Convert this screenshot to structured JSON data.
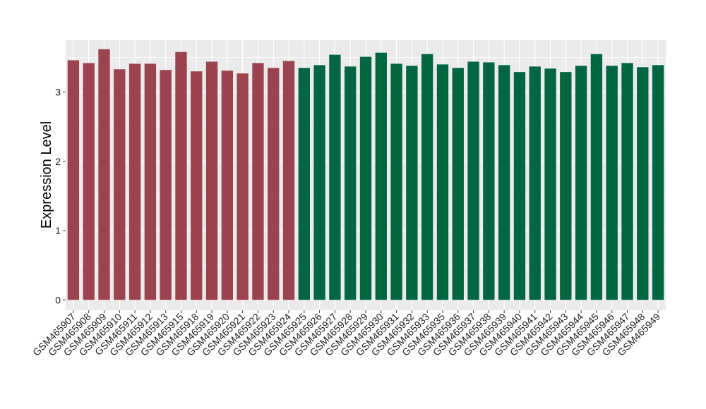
{
  "chart_data": {
    "type": "bar",
    "title": "",
    "xlabel": "",
    "ylabel": "Expression Level",
    "ylim": [
      -0.15,
      3.75
    ],
    "yticks": [
      0,
      1,
      2,
      3
    ],
    "grid": true,
    "legend": "none",
    "categories": [
      "GSM465907",
      "GSM465908",
      "GSM465909",
      "GSM465910",
      "GSM465911",
      "GSM465912",
      "GSM465913",
      "GSM465915",
      "GSM465918",
      "GSM465919",
      "GSM465920",
      "GSM465921",
      "GSM465922",
      "GSM465923",
      "GSM465924",
      "GSM465925",
      "GSM465926",
      "GSM465927",
      "GSM465928",
      "GSM465929",
      "GSM465930",
      "GSM465931",
      "GSM465932",
      "GSM465933",
      "GSM465935",
      "GSM465936",
      "GSM465937",
      "GSM465938",
      "GSM465939",
      "GSM465940",
      "GSM465941",
      "GSM465942",
      "GSM465943",
      "GSM465944",
      "GSM465945",
      "GSM465946",
      "GSM465947",
      "GSM465948",
      "GSM465949"
    ],
    "values": [
      3.46,
      3.42,
      3.62,
      3.33,
      3.41,
      3.41,
      3.32,
      3.58,
      3.3,
      3.44,
      3.31,
      3.27,
      3.42,
      3.35,
      3.45,
      3.35,
      3.39,
      3.54,
      3.37,
      3.51,
      3.57,
      3.41,
      3.38,
      3.55,
      3.4,
      3.35,
      3.44,
      3.43,
      3.39,
      3.29,
      3.37,
      3.34,
      3.29,
      3.38,
      3.55,
      3.38,
      3.42,
      3.36,
      3.39
    ],
    "group_sizes": [
      15,
      24
    ],
    "group_colors": [
      "#9b4450",
      "#036642"
    ],
    "panel_color": "#ebebeb",
    "grid_color": "#ffffff"
  }
}
